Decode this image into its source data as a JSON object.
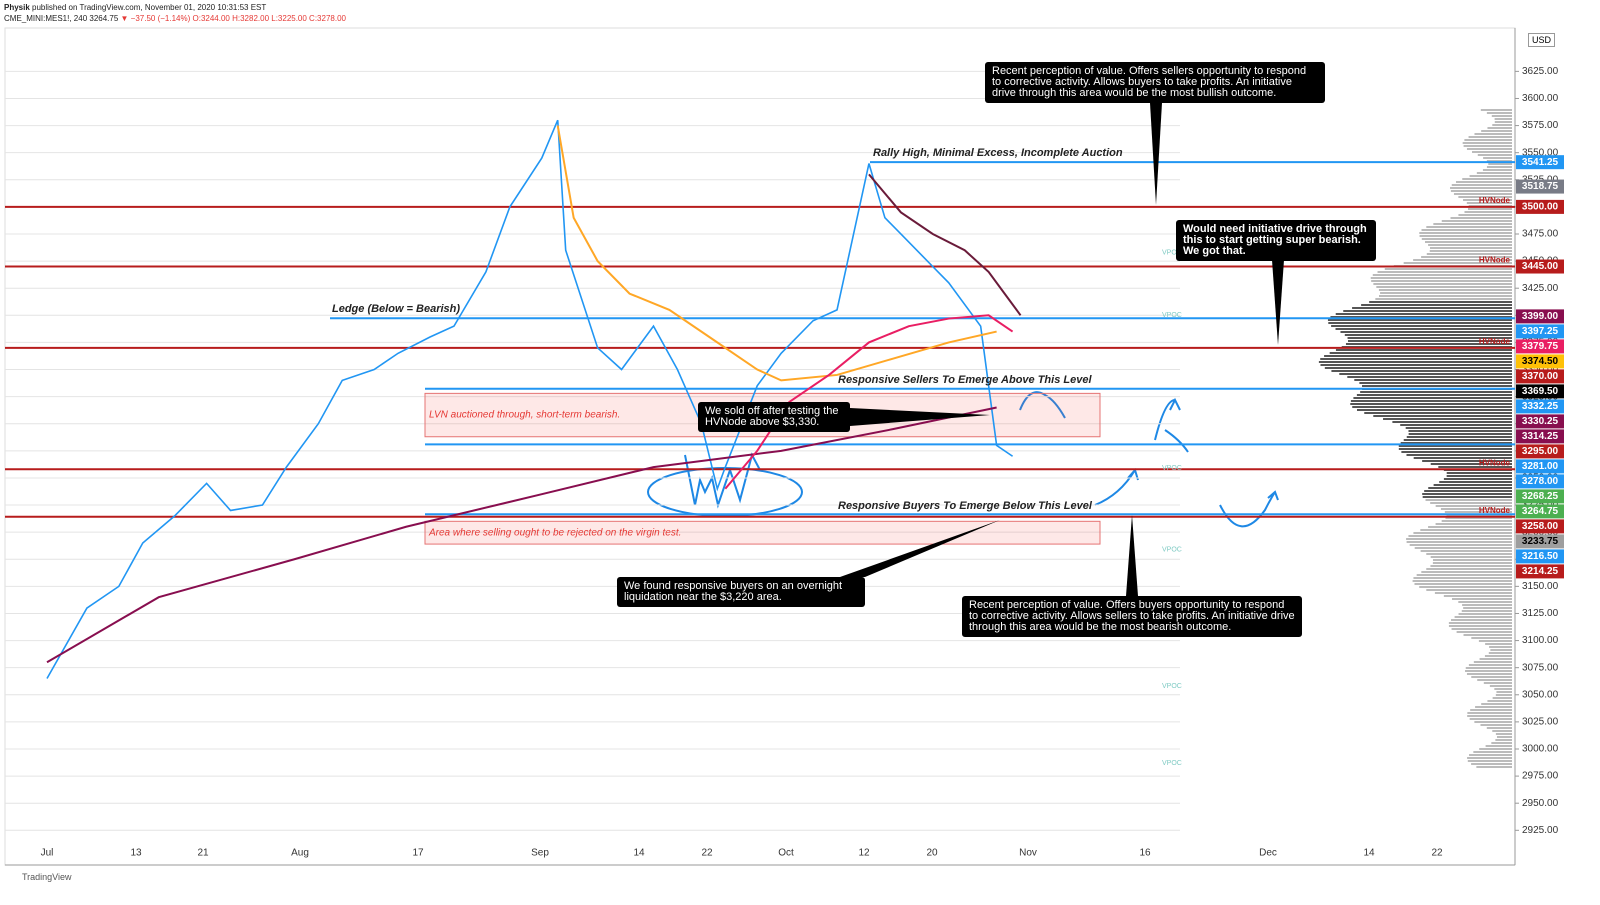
{
  "header": {
    "author": "Physik",
    "published": "published on TradingView.com, November 01, 2020 10:31:53 EST",
    "symbol": "CME_MINI:MES1!, 240",
    "last": "3264.75",
    "change": "▼ −37.50 (−1.14%)",
    "ohlc": "O:3244.00 H:3282.00 L:3225.00 C:3278.00"
  },
  "footer": {
    "brand": "TradingView"
  },
  "chart_data": {
    "type": "line",
    "currency": "USD",
    "x_labels": [
      "Jul",
      "13",
      "21",
      "Aug",
      "17",
      "Sep",
      "14",
      "22",
      "Oct",
      "12",
      "20",
      "Nov",
      "16",
      "Dec",
      "14",
      "22"
    ],
    "ylim": [
      2893,
      3665
    ],
    "yticks": [
      {
        "value": 2925,
        "label": "2925.00"
      },
      {
        "value": 2950,
        "label": "2950.00"
      },
      {
        "value": 2975,
        "label": "2975.00"
      },
      {
        "value": 3000,
        "label": "3000.00"
      },
      {
        "value": 3025,
        "label": "3025.00"
      },
      {
        "value": 3050,
        "label": "3050.00"
      },
      {
        "value": 3075,
        "label": "3075.00"
      },
      {
        "value": 3100,
        "label": "3100.00"
      },
      {
        "value": 3125,
        "label": "3125.00"
      },
      {
        "value": 3150,
        "label": "3150.00"
      },
      {
        "value": 3175,
        "label": "3175.00"
      },
      {
        "value": 3200,
        "label": "3200.00"
      },
      {
        "value": 3225,
        "label": "3225.00"
      },
      {
        "value": 3250,
        "label": "3250.00"
      },
      {
        "value": 3275,
        "label": "3275.00"
      },
      {
        "value": 3300,
        "label": "3300.00"
      },
      {
        "value": 3325,
        "label": "3325.00"
      },
      {
        "value": 3350,
        "label": "3350.00"
      },
      {
        "value": 3375,
        "label": "3375.00"
      },
      {
        "value": 3400,
        "label": "3400.00"
      },
      {
        "value": 3425,
        "label": "3425.00"
      },
      {
        "value": 3450,
        "label": "3450.00"
      },
      {
        "value": 3475,
        "label": "3475.00"
      },
      {
        "value": 3500,
        "label": "3500.00"
      },
      {
        "value": 3525,
        "label": "3525.00"
      },
      {
        "value": 3550,
        "label": "3550.00"
      },
      {
        "value": 3575,
        "label": "3575.00"
      },
      {
        "value": 3600,
        "label": "3600.00"
      },
      {
        "value": 3625,
        "label": "3625.00"
      }
    ],
    "series": [
      {
        "color": "#2196f3",
        "width": 1.6,
        "x": [
          "2020-07-01",
          "2020-07-06",
          "2020-07-10",
          "2020-07-13",
          "2020-07-17",
          "2020-07-21",
          "2020-07-24",
          "2020-07-28",
          "2020-07-31",
          "2020-08-04",
          "2020-08-07",
          "2020-08-11",
          "2020-08-14",
          "2020-08-18",
          "2020-08-21",
          "2020-08-25",
          "2020-08-28",
          "2020-09-01",
          "2020-09-03",
          "2020-09-04",
          "2020-09-08",
          "2020-09-11",
          "2020-09-15",
          "2020-09-18",
          "2020-09-21",
          "2020-09-23",
          "2020-09-24",
          "2020-09-28",
          "2020-10-01",
          "2020-10-05",
          "2020-10-08",
          "2020-10-12",
          "2020-10-14",
          "2020-10-16",
          "2020-10-20",
          "2020-10-22",
          "2020-10-26",
          "2020-10-28",
          "2020-10-30"
        ],
        "values": [
          3065,
          3130,
          3150,
          3190,
          3215,
          3245,
          3220,
          3225,
          3260,
          3300,
          3340,
          3350,
          3365,
          3380,
          3390,
          3440,
          3500,
          3545,
          3580,
          3460,
          3370,
          3350,
          3390,
          3350,
          3300,
          3240,
          3260,
          3335,
          3365,
          3395,
          3405,
          3540,
          3490,
          3475,
          3445,
          3430,
          3390,
          3280,
          3270
        ]
      },
      {
        "color": "#ffa726",
        "width": 2,
        "x": [
          "2020-09-03",
          "2020-09-05",
          "2020-09-08",
          "2020-09-12",
          "2020-09-17",
          "2020-09-22",
          "2020-09-28",
          "2020-10-01",
          "2020-10-08",
          "2020-10-15",
          "2020-10-22",
          "2020-10-28"
        ],
        "values": [
          3575,
          3490,
          3450,
          3420,
          3405,
          3380,
          3350,
          3340,
          3345,
          3360,
          3375,
          3385
        ]
      },
      {
        "color": "#880e4f",
        "width": 2,
        "x": [
          "2020-07-01",
          "2020-07-15",
          "2020-08-01",
          "2020-08-15",
          "2020-09-01",
          "2020-09-15",
          "2020-10-01",
          "2020-10-15",
          "2020-10-28"
        ],
        "values": [
          3080,
          3140,
          3175,
          3205,
          3235,
          3260,
          3275,
          3295,
          3315
        ]
      },
      {
        "color": "#e91e63",
        "width": 2,
        "x": [
          "2020-09-24",
          "2020-09-28",
          "2020-10-02",
          "2020-10-07",
          "2020-10-12",
          "2020-10-17",
          "2020-10-22",
          "2020-10-27",
          "2020-10-30"
        ],
        "values": [
          3240,
          3275,
          3320,
          3345,
          3375,
          3390,
          3397,
          3400,
          3385
        ]
      },
      {
        "color": "#6a1b3a",
        "width": 2,
        "x": [
          "2020-10-12",
          "2020-10-16",
          "2020-10-20",
          "2020-10-24",
          "2020-10-27",
          "2020-10-29",
          "2020-10-31"
        ],
        "values": [
          3530,
          3495,
          3475,
          3460,
          3440,
          3420,
          3400
        ]
      }
    ],
    "levels": [
      {
        "value": 3541.25,
        "label": "3541.25",
        "color": "#2196f3",
        "line": true
      },
      {
        "value": 3518.75,
        "label": "3518.75",
        "color": "#787b86"
      },
      {
        "value": 3500,
        "label": "3500.00",
        "color": "#b71c1c",
        "line": true,
        "tag": "HVNode"
      },
      {
        "value": 3445,
        "label": "3445.00",
        "color": "#b71c1c",
        "line": true,
        "tag": "HVNode"
      },
      {
        "value": 3399,
        "label": "3399.00",
        "color": "#880e4f"
      },
      {
        "value": 3397.25,
        "label": "3397.25",
        "color": "#2196f3",
        "line": true
      },
      {
        "value": 3379.75,
        "label": "3379.75",
        "color": "#e91e63"
      },
      {
        "value": 3374.5,
        "label": "3374.50",
        "color": "#ffc107"
      },
      {
        "value": 3370,
        "label": "3370.00",
        "color": "#b71c1c",
        "line": true,
        "tag": "HVNode"
      },
      {
        "value": 3369.5,
        "label": "3369.50",
        "color": "#000000"
      },
      {
        "value": 3332.25,
        "label": "3332.25",
        "color": "#2196f3",
        "line": true
      },
      {
        "value": 3330.25,
        "label": "3330.25",
        "color": "#880e4f"
      },
      {
        "value": 3314.25,
        "label": "3314.25",
        "color": "#880e4f"
      },
      {
        "value": 3295,
        "label": "3295.00",
        "color": "#b71c1c"
      },
      {
        "value": 3281,
        "label": "3281.00",
        "color": "#2196f3",
        "line": true
      },
      {
        "value": 3278,
        "label": "3278.00",
        "color": "#2196f3"
      },
      {
        "value": 3268.25,
        "label": "3268.25",
        "color": "#4caf50"
      },
      {
        "value": 3264.75,
        "label": "3264.75",
        "color": "#4caf50"
      },
      {
        "value": 3258,
        "label": "3258.00",
        "color": "#b71c1c",
        "line": true,
        "tag": "HVNode"
      },
      {
        "value": 3233.75,
        "label": "3233.75",
        "color": "#9e9e9e"
      },
      {
        "value": 3216.5,
        "label": "3216.50",
        "color": "#2196f3",
        "line": true
      },
      {
        "value": 3214.25,
        "label": "3214.25",
        "color": "#b71c1c",
        "line": true,
        "tag": "HVNode"
      }
    ],
    "vpocs": {
      "label": "VPOC",
      "values": [
        3457,
        3399,
        3258,
        3183,
        3057,
        2986
      ]
    },
    "zones": [
      {
        "top": 3328,
        "bottom": 3288,
        "text": "LVN auctioned through, short-term bearish."
      },
      {
        "top": 3210,
        "bottom": 3189,
        "text": "Area where selling ought to be rejected on the virgin test."
      }
    ],
    "annotations": [
      "Rally High, Minimal Excess, Incomplete Auction",
      "Ledge (Below = Bearish)",
      "Responsive Sellers To Emerge Above This Level",
      "Responsive Buyers To Emerge Below This Level"
    ],
    "callouts": [
      "Recent perception of value. Offers sellers opportunity to respond to corrective activity. Allows buyers to take profits. An initiative drive through this area would be the most bullish outcome.",
      "Would need initiative drive through this to start getting super bearish. We got that.",
      "We sold off after testing the HVNode above $3,330.",
      "We found responsive buyers on an overnight liquidation near the $3,220 area.",
      "Recent perception of value. Offers buyers opportunity to respond to corrective activity. Allows sellers to take profits. An initiative drive through this area would be the most bearish outcome."
    ]
  }
}
